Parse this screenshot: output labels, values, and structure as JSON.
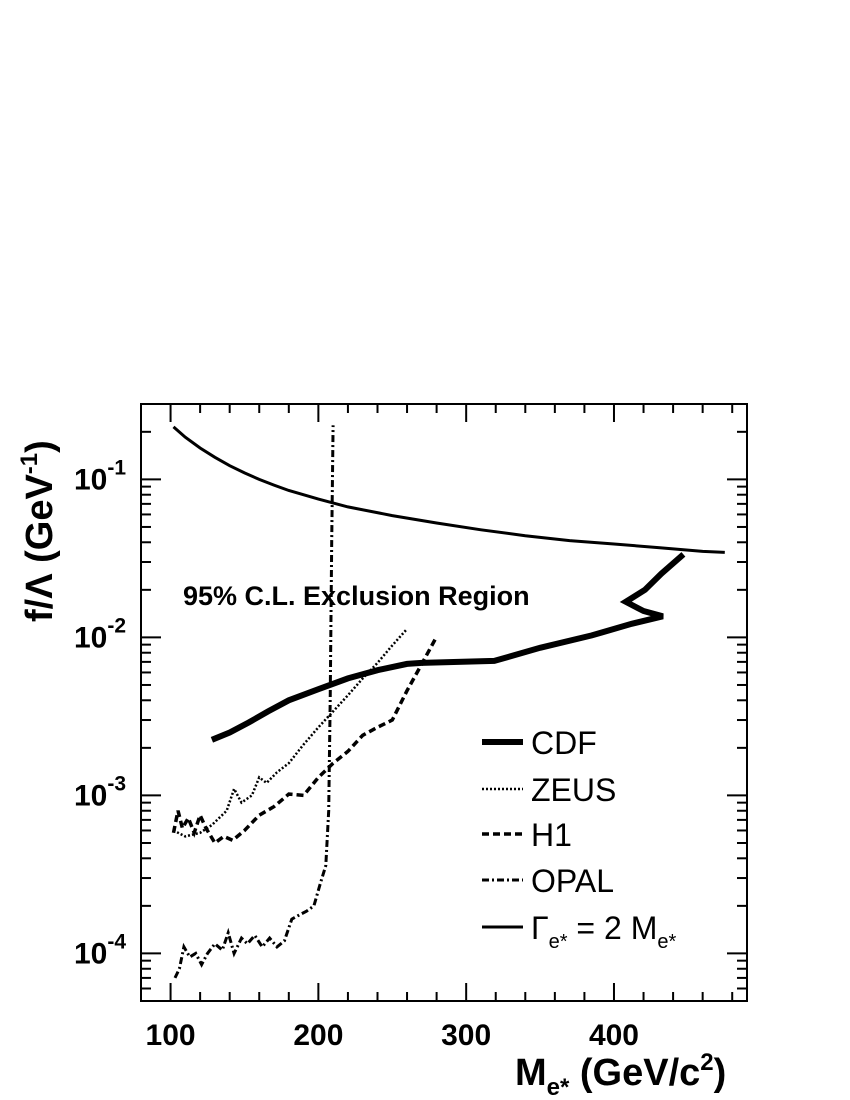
{
  "chart_data": {
    "type": "line",
    "title": "",
    "xlabel": {
      "main": "M",
      "sub": "e*",
      "rest": " (GeV/c",
      "sup": "2",
      "close": ")"
    },
    "ylabel": {
      "main": "f/Λ (GeV",
      "sup": "-1",
      "close": ")"
    },
    "xlim": [
      80,
      490
    ],
    "ylim": [
      5e-05,
      0.3
    ],
    "y_scale": "log",
    "grid": false,
    "legend_position": "bottom-right",
    "x_ticks": [
      100,
      200,
      300,
      400
    ],
    "x_tick_labels": [
      "100",
      "200",
      "300",
      "400"
    ],
    "y_ticks": [
      0.0001,
      0.001,
      0.01,
      0.1
    ],
    "y_tick_labels": [
      {
        "base": "10",
        "exp": "-4"
      },
      {
        "base": "10",
        "exp": "-3"
      },
      {
        "base": "10",
        "exp": "-2"
      },
      {
        "base": "10",
        "exp": "-1"
      }
    ],
    "annotation": "95% C.L.  Exclusion Region",
    "series": [
      {
        "name": "CDF",
        "style": "thick",
        "x": [
          128,
          140,
          153,
          166,
          180,
          200,
          220,
          240,
          260,
          270,
          319,
          350,
          385,
          412,
          433,
          420,
          408,
          421,
          432,
          447
        ],
        "y": [
          0.00225,
          0.0025,
          0.0029,
          0.0034,
          0.004,
          0.0047,
          0.0055,
          0.0062,
          0.0068,
          0.0069,
          0.0071,
          0.0086,
          0.0103,
          0.0122,
          0.0136,
          0.0147,
          0.0168,
          0.02,
          0.0253,
          0.0335
        ]
      },
      {
        "name": "ZEUS",
        "style": "dotted",
        "x": [
          102,
          110,
          120,
          128,
          138,
          143,
          148,
          155,
          160,
          165,
          172,
          180,
          190,
          200,
          210,
          220,
          230,
          240,
          250,
          260
        ],
        "y": [
          0.0006,
          0.00055,
          0.00058,
          0.00065,
          0.0008,
          0.0011,
          0.0009,
          0.001,
          0.0013,
          0.0012,
          0.0014,
          0.0016,
          0.0021,
          0.0027,
          0.0034,
          0.0043,
          0.0055,
          0.0069,
          0.0089,
          0.0113
        ]
      },
      {
        "name": "H1",
        "style": "dashed",
        "x": [
          102,
          105,
          108,
          112,
          116,
          120,
          124,
          130,
          136,
          142,
          150,
          160,
          170,
          180,
          190,
          200,
          210,
          220,
          230,
          240,
          250,
          260,
          270,
          280
        ],
        "y": [
          0.00058,
          0.0008,
          0.00062,
          0.00072,
          0.00058,
          0.00075,
          0.00062,
          0.0005,
          0.00055,
          0.00052,
          0.0006,
          0.00075,
          0.00085,
          0.00102,
          0.001,
          0.0013,
          0.0016,
          0.0019,
          0.0024,
          0.0027,
          0.003,
          0.0046,
          0.0068,
          0.0101
        ]
      },
      {
        "name": "OPAL",
        "style": "dashdot",
        "x": [
          103,
          106,
          109,
          113,
          117,
          121,
          125,
          130,
          135,
          139,
          143,
          148,
          152,
          157,
          162,
          167,
          172,
          177,
          182,
          187,
          192,
          197,
          201,
          205,
          207,
          208,
          209,
          210
        ],
        "y": [
          7e-05,
          8e-05,
          0.00011,
          9.5e-05,
          0.0001,
          8.5e-05,
          0.0001,
          0.000115,
          0.000105,
          0.000135,
          0.0001,
          0.000125,
          0.000115,
          0.00013,
          0.00011,
          0.000125,
          0.00011,
          0.00012,
          0.000165,
          0.000175,
          0.000185,
          0.0002,
          0.00027,
          0.00036,
          0.0008,
          0.004,
          0.04,
          0.22
        ]
      },
      {
        "name": "Γ",
        "name_sub": "e*",
        "name_rest": " = 2 M",
        "name_sub2": "e*",
        "style": "solid",
        "x": [
          102,
          110,
          120,
          130,
          140,
          150,
          160,
          170,
          180,
          200,
          220,
          250,
          280,
          310,
          340,
          370,
          400,
          430,
          460,
          475
        ],
        "y": [
          0.215,
          0.185,
          0.158,
          0.138,
          0.122,
          0.11,
          0.1,
          0.092,
          0.085,
          0.075,
          0.067,
          0.059,
          0.053,
          0.048,
          0.044,
          0.041,
          0.039,
          0.037,
          0.035,
          0.0345
        ]
      }
    ]
  }
}
